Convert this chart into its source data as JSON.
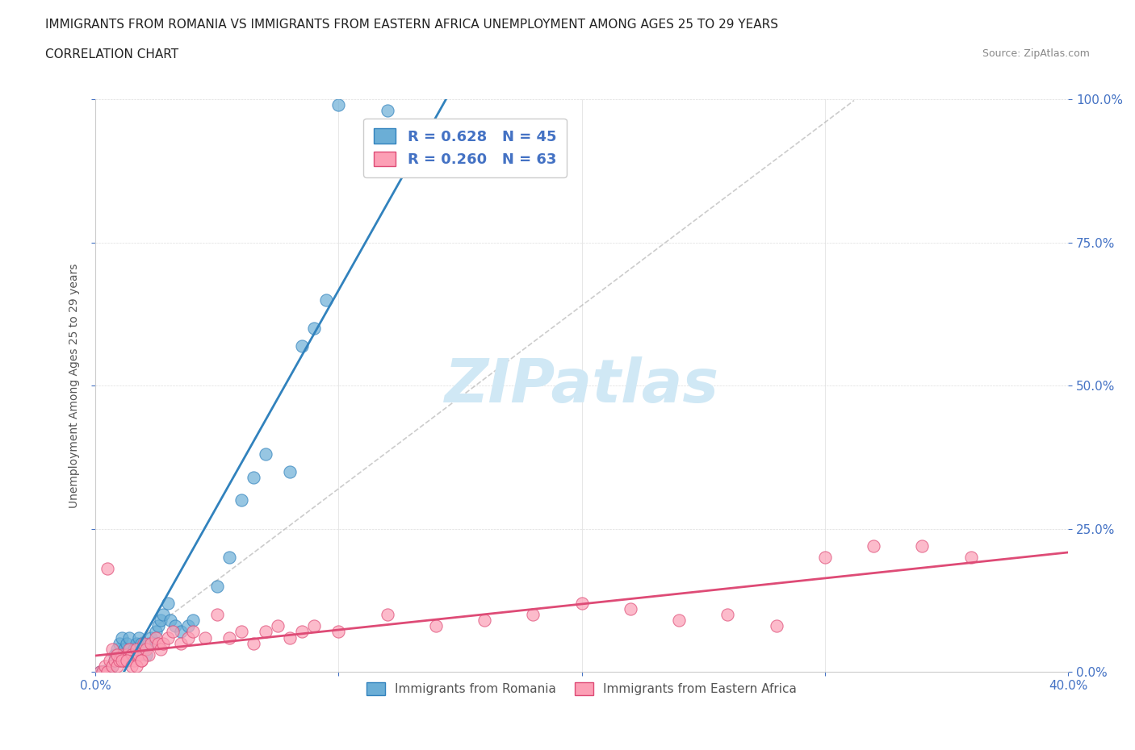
{
  "title_line1": "IMMIGRANTS FROM ROMANIA VS IMMIGRANTS FROM EASTERN AFRICA UNEMPLOYMENT AMONG AGES 25 TO 29 YEARS",
  "title_line2": "CORRELATION CHART",
  "source_text": "Source: ZipAtlas.com",
  "ylabel": "Unemployment Among Ages 25 to 29 years",
  "x_min": 0.0,
  "x_max": 0.4,
  "y_min": 0.0,
  "y_max": 1.0,
  "romania_color": "#6baed6",
  "romania_edge_color": "#3182bd",
  "eastern_africa_color": "#fc9fb5",
  "eastern_africa_edge_color": "#de4b76",
  "romania_R": 0.628,
  "romania_N": 45,
  "eastern_africa_R": 0.26,
  "eastern_africa_N": 63,
  "trend_romania_color": "#3182bd",
  "trend_eastern_africa_color": "#de4b76",
  "watermark_text": "ZIPatlas",
  "watermark_color": "#d0e8f5",
  "romania_x": [
    0.002,
    0.003,
    0.004,
    0.005,
    0.006,
    0.007,
    0.008,
    0.008,
    0.009,
    0.01,
    0.011,
    0.012,
    0.012,
    0.013,
    0.014,
    0.015,
    0.016,
    0.017,
    0.018,
    0.019,
    0.02,
    0.021,
    0.022,
    0.023,
    0.025,
    0.026,
    0.027,
    0.028,
    0.03,
    0.031,
    0.033,
    0.035,
    0.038,
    0.04,
    0.05,
    0.055,
    0.06,
    0.065,
    0.07,
    0.08,
    0.085,
    0.09,
    0.095,
    0.1,
    0.12
  ],
  "romania_y": [
    0.0,
    0.0,
    0.0,
    0.0,
    0.0,
    0.01,
    0.02,
    0.03,
    0.04,
    0.05,
    0.06,
    0.04,
    0.02,
    0.05,
    0.06,
    0.03,
    0.04,
    0.05,
    0.06,
    0.05,
    0.04,
    0.03,
    0.05,
    0.06,
    0.07,
    0.08,
    0.09,
    0.1,
    0.12,
    0.09,
    0.08,
    0.07,
    0.08,
    0.09,
    0.15,
    0.2,
    0.3,
    0.34,
    0.38,
    0.35,
    0.57,
    0.6,
    0.65,
    0.99,
    0.98
  ],
  "eastern_africa_x": [
    0.002,
    0.003,
    0.004,
    0.005,
    0.006,
    0.007,
    0.008,
    0.009,
    0.01,
    0.011,
    0.012,
    0.013,
    0.014,
    0.015,
    0.016,
    0.017,
    0.018,
    0.019,
    0.02,
    0.021,
    0.022,
    0.023,
    0.025,
    0.026,
    0.027,
    0.028,
    0.03,
    0.032,
    0.035,
    0.038,
    0.04,
    0.045,
    0.05,
    0.055,
    0.06,
    0.065,
    0.07,
    0.075,
    0.08,
    0.085,
    0.09,
    0.1,
    0.12,
    0.14,
    0.16,
    0.18,
    0.2,
    0.22,
    0.24,
    0.26,
    0.28,
    0.3,
    0.32,
    0.34,
    0.36,
    0.005,
    0.007,
    0.009,
    0.011,
    0.013,
    0.015,
    0.017,
    0.019
  ],
  "eastern_africa_y": [
    0.0,
    0.0,
    0.01,
    0.0,
    0.02,
    0.01,
    0.02,
    0.01,
    0.02,
    0.03,
    0.02,
    0.03,
    0.04,
    0.03,
    0.02,
    0.04,
    0.03,
    0.02,
    0.05,
    0.04,
    0.03,
    0.05,
    0.06,
    0.05,
    0.04,
    0.05,
    0.06,
    0.07,
    0.05,
    0.06,
    0.07,
    0.06,
    0.1,
    0.06,
    0.07,
    0.05,
    0.07,
    0.08,
    0.06,
    0.07,
    0.08,
    0.07,
    0.1,
    0.08,
    0.09,
    0.1,
    0.12,
    0.11,
    0.09,
    0.1,
    0.08,
    0.2,
    0.22,
    0.22,
    0.2,
    0.18,
    0.04,
    0.03,
    0.02,
    0.02,
    0.01,
    0.01,
    0.02
  ],
  "dash_slope": 3.2,
  "legend_romania_label": "R = 0.628   N = 45",
  "legend_ea_label": "R = 0.260   N = 63",
  "bottom_legend_romania": "Immigrants from Romania",
  "bottom_legend_ea": "Immigrants from Eastern Africa"
}
